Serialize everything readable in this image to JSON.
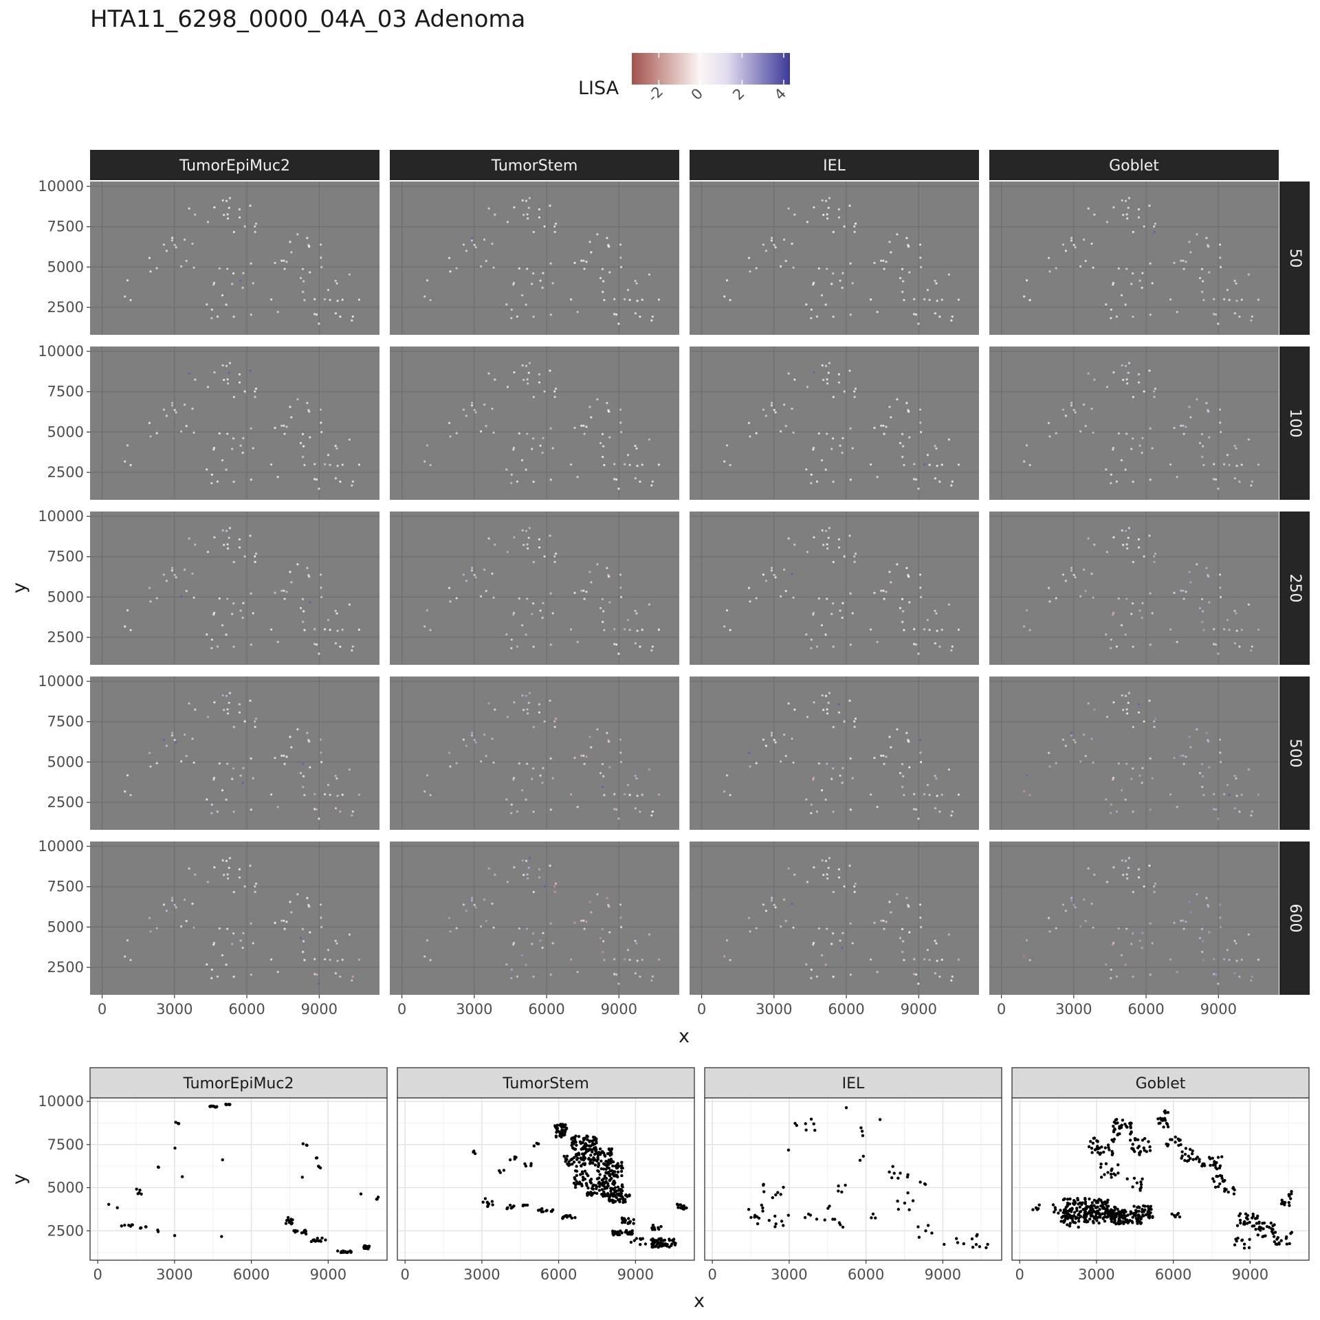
{
  "title": "HTA11_6298_0000_04A_03 Adenoma",
  "legend": {
    "title": "LISA",
    "ticks": [
      "-2",
      "0",
      "2",
      "4"
    ],
    "tick_values": [
      -2,
      0,
      2,
      4
    ],
    "range": [
      -3.3,
      4.3
    ],
    "colors": {
      "low": "#a4524c",
      "mid": "#fbf6f4",
      "high": "#3c3a99"
    }
  },
  "colors": {
    "panel_bg": "#7f7f7f",
    "strip_dark": "#262626",
    "strip_light": "#d9d9d9",
    "tissue_base": "#dcd9ec"
  },
  "chart_data": [
    {
      "type": "scatter",
      "description_kind": "faceted spatial LISA map",
      "col_facets": [
        "TumorEpiMuc2",
        "TumorStem",
        "IEL",
        "Goblet"
      ],
      "row_facets": [
        "50",
        "100",
        "250",
        "500",
        "600"
      ],
      "xlabel": "x",
      "ylabel": "y",
      "x_ticks": [
        0,
        3000,
        6000,
        9000
      ],
      "x_tick_labels": [
        "0",
        "3000",
        "6000",
        "9000"
      ],
      "y_ticks": [
        2500,
        5000,
        7500,
        10000
      ],
      "y_tick_labels": [
        "2500",
        "5000",
        "7500",
        "10000"
      ],
      "xlim": [
        -500,
        11500
      ],
      "ylim": [
        800,
        10300
      ],
      "color_variable": "LISA",
      "grid": true,
      "legend_position": "top"
    },
    {
      "type": "scatter",
      "col_facets": [
        "TumorEpiMuc2",
        "TumorStem",
        "IEL",
        "Goblet"
      ],
      "xlabel": "x",
      "ylabel": "y",
      "x_ticks": [
        0,
        3000,
        6000,
        9000
      ],
      "x_tick_labels": [
        "0",
        "3000",
        "6000",
        "9000"
      ],
      "y_ticks": [
        2500,
        5000,
        7500,
        10000
      ],
      "y_tick_labels": [
        "2500",
        "5000",
        "7500",
        "10000"
      ],
      "xlim": [
        -300,
        11300
      ],
      "ylim": [
        800,
        10200
      ],
      "grid": true,
      "point_clusters": {
        "TumorEpiMuc2": [
          [
            4500,
            9700,
            220,
            50,
            10
          ],
          [
            5100,
            9800,
            150,
            40,
            5
          ],
          [
            3100,
            8700,
            80,
            120,
            4
          ],
          [
            3050,
            7300,
            40,
            40,
            1
          ],
          [
            2400,
            6200,
            120,
            40,
            3
          ],
          [
            3300,
            5600,
            40,
            40,
            1
          ],
          [
            1600,
            4800,
            100,
            200,
            5
          ],
          [
            1100,
            2800,
            300,
            50,
            6
          ],
          [
            1900,
            2700,
            250,
            60,
            5
          ],
          [
            2400,
            2500,
            60,
            60,
            2
          ],
          [
            400,
            4000,
            40,
            40,
            1
          ],
          [
            800,
            3800,
            40,
            40,
            1
          ],
          [
            3000,
            2200,
            40,
            40,
            1
          ],
          [
            4800,
            2200,
            40,
            40,
            1
          ],
          [
            4900,
            6600,
            40,
            40,
            1
          ],
          [
            7500,
            3000,
            150,
            300,
            12
          ],
          [
            7900,
            2400,
            250,
            150,
            10
          ],
          [
            8600,
            2000,
            300,
            120,
            12
          ],
          [
            9600,
            1300,
            300,
            60,
            14
          ],
          [
            10500,
            1550,
            120,
            100,
            16
          ],
          [
            8100,
            7500,
            100,
            80,
            3
          ],
          [
            8500,
            6700,
            80,
            60,
            2
          ],
          [
            8700,
            6200,
            100,
            80,
            3
          ],
          [
            8000,
            5600,
            40,
            40,
            1
          ],
          [
            10900,
            4400,
            100,
            150,
            3
          ],
          [
            10300,
            4600,
            40,
            40,
            1
          ]
        ],
        "TumorStem": [
          [
            6100,
            8300,
            250,
            400,
            40
          ],
          [
            7000,
            7600,
            500,
            400,
            60
          ],
          [
            7500,
            6800,
            600,
            500,
            70
          ],
          [
            8000,
            6000,
            500,
            500,
            60
          ],
          [
            7800,
            5000,
            700,
            500,
            90
          ],
          [
            8300,
            4400,
            500,
            300,
            40
          ],
          [
            6600,
            6600,
            400,
            400,
            30
          ],
          [
            6900,
            5500,
            300,
            500,
            25
          ],
          [
            6400,
            3300,
            250,
            100,
            14
          ],
          [
            5500,
            3700,
            300,
            100,
            10
          ],
          [
            4400,
            3900,
            500,
            120,
            12
          ],
          [
            3300,
            4200,
            300,
            300,
            10
          ],
          [
            2700,
            7000,
            80,
            150,
            3
          ],
          [
            4200,
            6700,
            150,
            100,
            4
          ],
          [
            4800,
            6300,
            150,
            100,
            4
          ],
          [
            3800,
            5900,
            120,
            120,
            3
          ],
          [
            8700,
            3100,
            250,
            200,
            14
          ],
          [
            8500,
            2400,
            400,
            150,
            30
          ],
          [
            10100,
            1800,
            500,
            250,
            60
          ],
          [
            10800,
            3900,
            200,
            150,
            14
          ],
          [
            9800,
            2700,
            250,
            150,
            10
          ],
          [
            9100,
            1900,
            300,
            200,
            8
          ],
          [
            5100,
            7500,
            150,
            100,
            4
          ]
        ],
        "IEL": [
          [
            1700,
            3500,
            300,
            700,
            10
          ],
          [
            2300,
            4700,
            500,
            500,
            8
          ],
          [
            2600,
            3000,
            400,
            400,
            7
          ],
          [
            2900,
            7200,
            80,
            80,
            1
          ],
          [
            3700,
            8600,
            500,
            400,
            7
          ],
          [
            3800,
            3300,
            300,
            300,
            4
          ],
          [
            4700,
            3000,
            500,
            300,
            6
          ],
          [
            5200,
            9700,
            80,
            80,
            1
          ],
          [
            5700,
            8300,
            200,
            300,
            3
          ],
          [
            6600,
            8900,
            80,
            80,
            1
          ],
          [
            5200,
            5100,
            300,
            400,
            4
          ],
          [
            6500,
            3300,
            300,
            200,
            3
          ],
          [
            7200,
            6000,
            500,
            500,
            8
          ],
          [
            7600,
            4300,
            400,
            600,
            6
          ],
          [
            8200,
            5300,
            200,
            300,
            3
          ],
          [
            8300,
            2600,
            300,
            500,
            5
          ],
          [
            9300,
            1800,
            300,
            300,
            3
          ],
          [
            10100,
            2000,
            400,
            500,
            7
          ],
          [
            10700,
            1600,
            120,
            120,
            2
          ],
          [
            5800,
            6700,
            150,
            150,
            2
          ],
          [
            4500,
            4000,
            200,
            200,
            2
          ]
        ],
        "Goblet": [
          [
            2600,
            3800,
            900,
            600,
            110
          ],
          [
            3300,
            3400,
            800,
            500,
            90
          ],
          [
            4100,
            3300,
            700,
            400,
            80
          ],
          [
            4800,
            3600,
            400,
            350,
            40
          ],
          [
            2000,
            3000,
            400,
            300,
            20
          ],
          [
            1600,
            3700,
            400,
            400,
            14
          ],
          [
            700,
            3900,
            200,
            200,
            5
          ],
          [
            3200,
            7400,
            500,
            500,
            30
          ],
          [
            4000,
            8500,
            400,
            500,
            30
          ],
          [
            4700,
            7400,
            400,
            500,
            24
          ],
          [
            3500,
            6000,
            400,
            400,
            14
          ],
          [
            5600,
            8800,
            200,
            300,
            14
          ],
          [
            6000,
            7700,
            300,
            300,
            12
          ],
          [
            6700,
            6900,
            400,
            400,
            18
          ],
          [
            7500,
            6400,
            400,
            400,
            20
          ],
          [
            7800,
            5400,
            300,
            400,
            14
          ],
          [
            8200,
            4800,
            200,
            300,
            8
          ],
          [
            9000,
            3100,
            500,
            400,
            28
          ],
          [
            9600,
            2600,
            400,
            500,
            22
          ],
          [
            10400,
            4300,
            250,
            500,
            14
          ],
          [
            10300,
            2100,
            400,
            400,
            16
          ],
          [
            8700,
            1800,
            300,
            300,
            10
          ],
          [
            6100,
            3400,
            200,
            150,
            6
          ],
          [
            5800,
            9400,
            150,
            150,
            4
          ],
          [
            4500,
            5200,
            300,
            400,
            10
          ]
        ]
      }
    }
  ]
}
